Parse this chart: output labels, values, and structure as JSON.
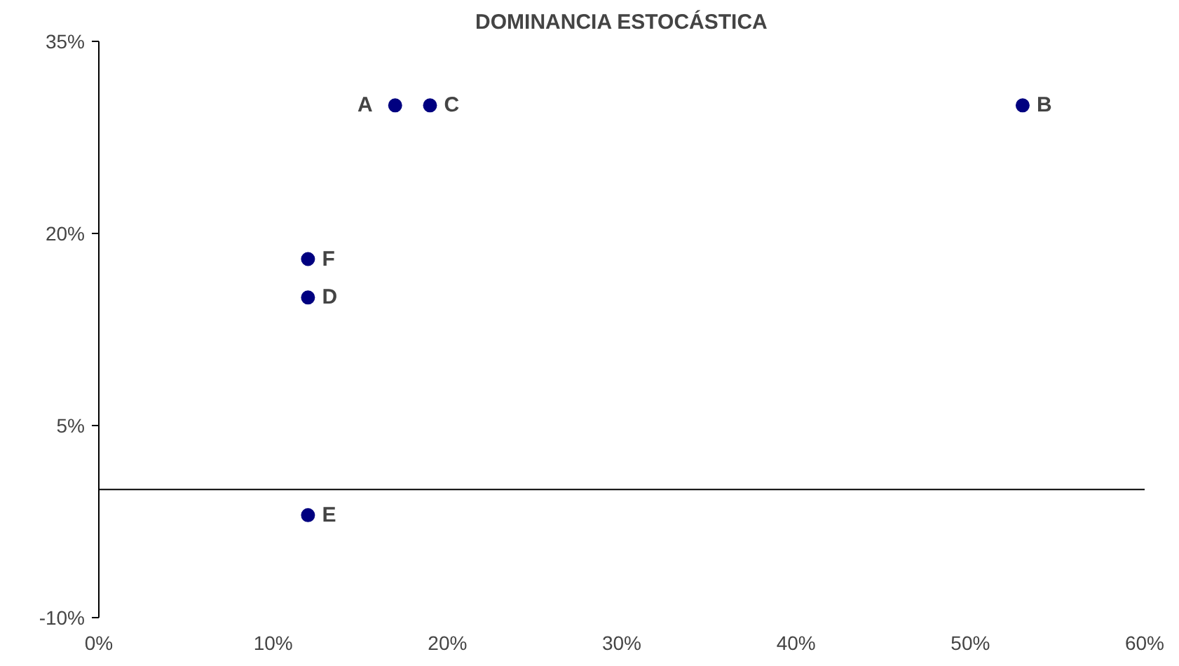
{
  "chart_data": {
    "type": "scatter",
    "title": "DOMINANCIA ESTOCÁSTICA",
    "x": [
      17,
      53,
      19,
      12,
      12,
      12
    ],
    "series": [
      {
        "color": "#000080",
        "values": [
          30,
          30,
          30,
          15,
          -2,
          18
        ]
      }
    ],
    "marker": "circle",
    "grid": false,
    "xlim": [
      0,
      60
    ],
    "ylim": [
      -10,
      35
    ],
    "xticks": [
      {
        "value": 0,
        "label": "0%"
      },
      {
        "value": 10,
        "label": "10%"
      },
      {
        "value": 20,
        "label": "20%"
      },
      {
        "value": 30,
        "label": "30%"
      },
      {
        "value": 40,
        "label": "40%"
      },
      {
        "value": 50,
        "label": "50%"
      },
      {
        "value": 60,
        "label": "60%"
      }
    ],
    "yticks": [
      {
        "value": -10,
        "label": "-10%"
      },
      {
        "value": 5,
        "label": "5%"
      },
      {
        "value": 20,
        "label": "20%"
      },
      {
        "value": 35,
        "label": "35%"
      }
    ],
    "ref_lines": [
      {
        "axis": "y",
        "value": 0,
        "color": "#000000"
      }
    ],
    "annotations": [
      {
        "text": "A",
        "x": 17,
        "y": 30
      },
      {
        "text": "B",
        "x": 53,
        "y": 30
      },
      {
        "text": "C",
        "x": 19,
        "y": 30
      },
      {
        "text": "D",
        "x": 12,
        "y": 15
      },
      {
        "text": "E",
        "x": 12,
        "y": -2
      },
      {
        "text": "F",
        "x": 12,
        "y": 18
      }
    ]
  }
}
